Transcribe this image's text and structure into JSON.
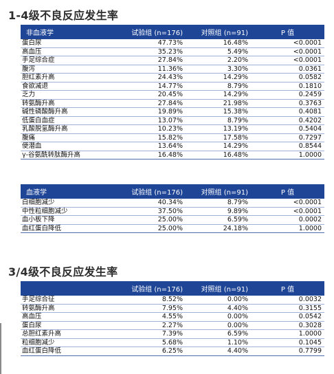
{
  "section1": {
    "title": "1-4级不良反应发生率",
    "nonblood": {
      "headers": [
        "非血液学",
        "试验组 (n=176)",
        "对照组 (n=91)",
        "P 值"
      ],
      "rows": [
        [
          "蛋白尿",
          "47.73%",
          "16.48%",
          "<0.0001"
        ],
        [
          "高血压",
          "35.23%",
          "5.49%",
          "<0.0001"
        ],
        [
          "手足综合症",
          "27.84%",
          "2.20%",
          "<0.0001"
        ],
        [
          "腹泻",
          "11.36%",
          "3.30%",
          "0.0361"
        ],
        [
          "胆红素升高",
          "24.43%",
          "14.29%",
          "0.0582"
        ],
        [
          "食欲减退",
          "14.77%",
          "8.79%",
          "0.1810"
        ],
        [
          "乏力",
          "20.45%",
          "14.29%",
          "0.2459"
        ],
        [
          "转氨酶升高",
          "27.84%",
          "21.98%",
          "0.3763"
        ],
        [
          "碱性磷酸酶升高",
          "19.89%",
          "15.38%",
          "0.4081"
        ],
        [
          "低蛋白血症",
          "13.07%",
          "8.79%",
          "0.4202"
        ],
        [
          "乳酸脱氢酶升高",
          "10.23%",
          "13.19%",
          "0.5404"
        ],
        [
          "腹痛",
          "15.82%",
          "17.58%",
          "0.7297"
        ],
        [
          "便潜血",
          "13.64%",
          "14.29%",
          "0.8544"
        ],
        [
          "γ-谷氨酰转肽酶升高",
          "16.48%",
          "16.48%",
          "1.0000"
        ]
      ]
    },
    "blood": {
      "headers": [
        "血液学",
        "试验组 (n=176)",
        "对照组 (n=91)",
        "P 值"
      ],
      "rows": [
        [
          "白细胞减少",
          "40.34%",
          "8.79%",
          "<0.0001"
        ],
        [
          "中性粒细胞减少",
          "37.50%",
          "9.89%",
          "<0.0001"
        ],
        [
          "血小板下降",
          "25.00%",
          "6.59%",
          "0.0002"
        ],
        [
          "血红蛋白降低",
          "25.00%",
          "24.18%",
          "1.0000"
        ]
      ]
    }
  },
  "section2": {
    "title": "3/4级不良反应发生率",
    "table": {
      "headers": [
        "",
        "试验组 (n=176)",
        "对照组 (n=91)",
        "P 值"
      ],
      "rows": [
        [
          "手足综合征",
          "8.52%",
          "0.00%",
          "0.0032"
        ],
        [
          "转氨酶升高",
          "7.95%",
          "4.40%",
          "0.3155"
        ],
        [
          "高血压",
          "4.55%",
          "0.00%",
          "0.0542"
        ],
        [
          "蛋白尿",
          "2.27%",
          "0.00%",
          "0.3028"
        ],
        [
          "总胆红素升高",
          "7.39%",
          "6.59%",
          "1.0000"
        ],
        [
          "粒细胞减少",
          "5.68%",
          "1.10%",
          "0.1045"
        ],
        [
          "血红蛋白降低",
          "6.25%",
          "4.40%",
          "0.7799"
        ]
      ]
    }
  }
}
